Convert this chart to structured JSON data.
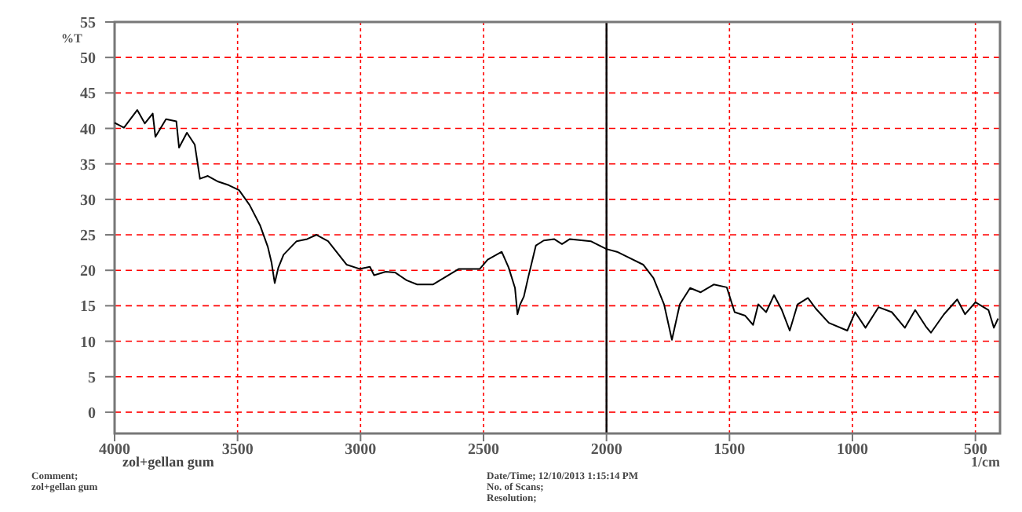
{
  "chart_data": {
    "type": "line",
    "ylabel": "%T",
    "xlabel": "1/cm",
    "x": [
      4000,
      3962,
      3908,
      3877,
      3845,
      3834,
      3791,
      3749,
      3738,
      3706,
      3674,
      3653,
      3621,
      3579,
      3536,
      3494,
      3451,
      3408,
      3377,
      3362,
      3349,
      3334,
      3313,
      3260,
      3217,
      3179,
      3132,
      3057,
      3004,
      2962,
      2945,
      2898,
      2860,
      2813,
      2770,
      2706,
      2600,
      2515,
      2483,
      2426,
      2398,
      2372,
      2362,
      2351,
      2336,
      2319,
      2287,
      2255,
      2213,
      2181,
      2149,
      2064,
      2000,
      1957,
      1915,
      1851,
      1809,
      1766,
      1734,
      1702,
      1660,
      1617,
      1564,
      1511,
      1479,
      1436,
      1404,
      1383,
      1351,
      1319,
      1287,
      1255,
      1223,
      1181,
      1149,
      1096,
      1021,
      989,
      947,
      894,
      840,
      787,
      745,
      702,
      681,
      628,
      574,
      542,
      500,
      447,
      425,
      408
    ],
    "series": [
      {
        "color": "#000000",
        "values": [
          40.8,
          40.1,
          42.6,
          40.7,
          42.1,
          38.8,
          41.3,
          41.0,
          37.3,
          39.4,
          37.7,
          32.9,
          33.3,
          32.5,
          32.0,
          31.3,
          29.2,
          26.3,
          23.3,
          21.1,
          18.2,
          20.4,
          22.2,
          24.1,
          24.4,
          25.0,
          24.1,
          20.8,
          20.2,
          20.5,
          19.3,
          19.8,
          19.7,
          18.6,
          18.0,
          18.0,
          20.2,
          20.2,
          21.5,
          22.6,
          20.4,
          17.5,
          13.8,
          15.2,
          16.3,
          18.9,
          23.5,
          24.2,
          24.4,
          23.7,
          24.4,
          24.1,
          23.0,
          22.6,
          21.9,
          20.8,
          18.9,
          15.2,
          10.2,
          15.2,
          17.5,
          16.9,
          18.0,
          17.6,
          14.1,
          13.6,
          12.3,
          15.2,
          14.1,
          16.5,
          14.4,
          11.5,
          15.2,
          16.1,
          14.6,
          12.6,
          11.5,
          14.1,
          11.9,
          14.8,
          14.1,
          11.9,
          14.4,
          12.1,
          11.2,
          13.8,
          15.9,
          13.8,
          15.5,
          14.4,
          11.9,
          13.2
        ]
      }
    ],
    "xlim": [
      4000,
      400
    ],
    "xticks": [
      4000,
      3500,
      3000,
      2500,
      2000,
      1500,
      1000,
      500
    ],
    "ylim": [
      -3,
      55
    ],
    "yticks": [
      0,
      5,
      10,
      15,
      20,
      25,
      30,
      35,
      40,
      45,
      50,
      55
    ],
    "grid": true,
    "ref_lines": [
      {
        "axis": "x",
        "value": 2000,
        "color": "#000000"
      }
    ],
    "annotations": [
      "zol+gellan gum",
      "Comment;",
      "zol+gellan gum",
      "Date/Time;     12/10/2013 1:15:14 PM",
      "No. of Scans;",
      "Resolution;"
    ]
  }
}
